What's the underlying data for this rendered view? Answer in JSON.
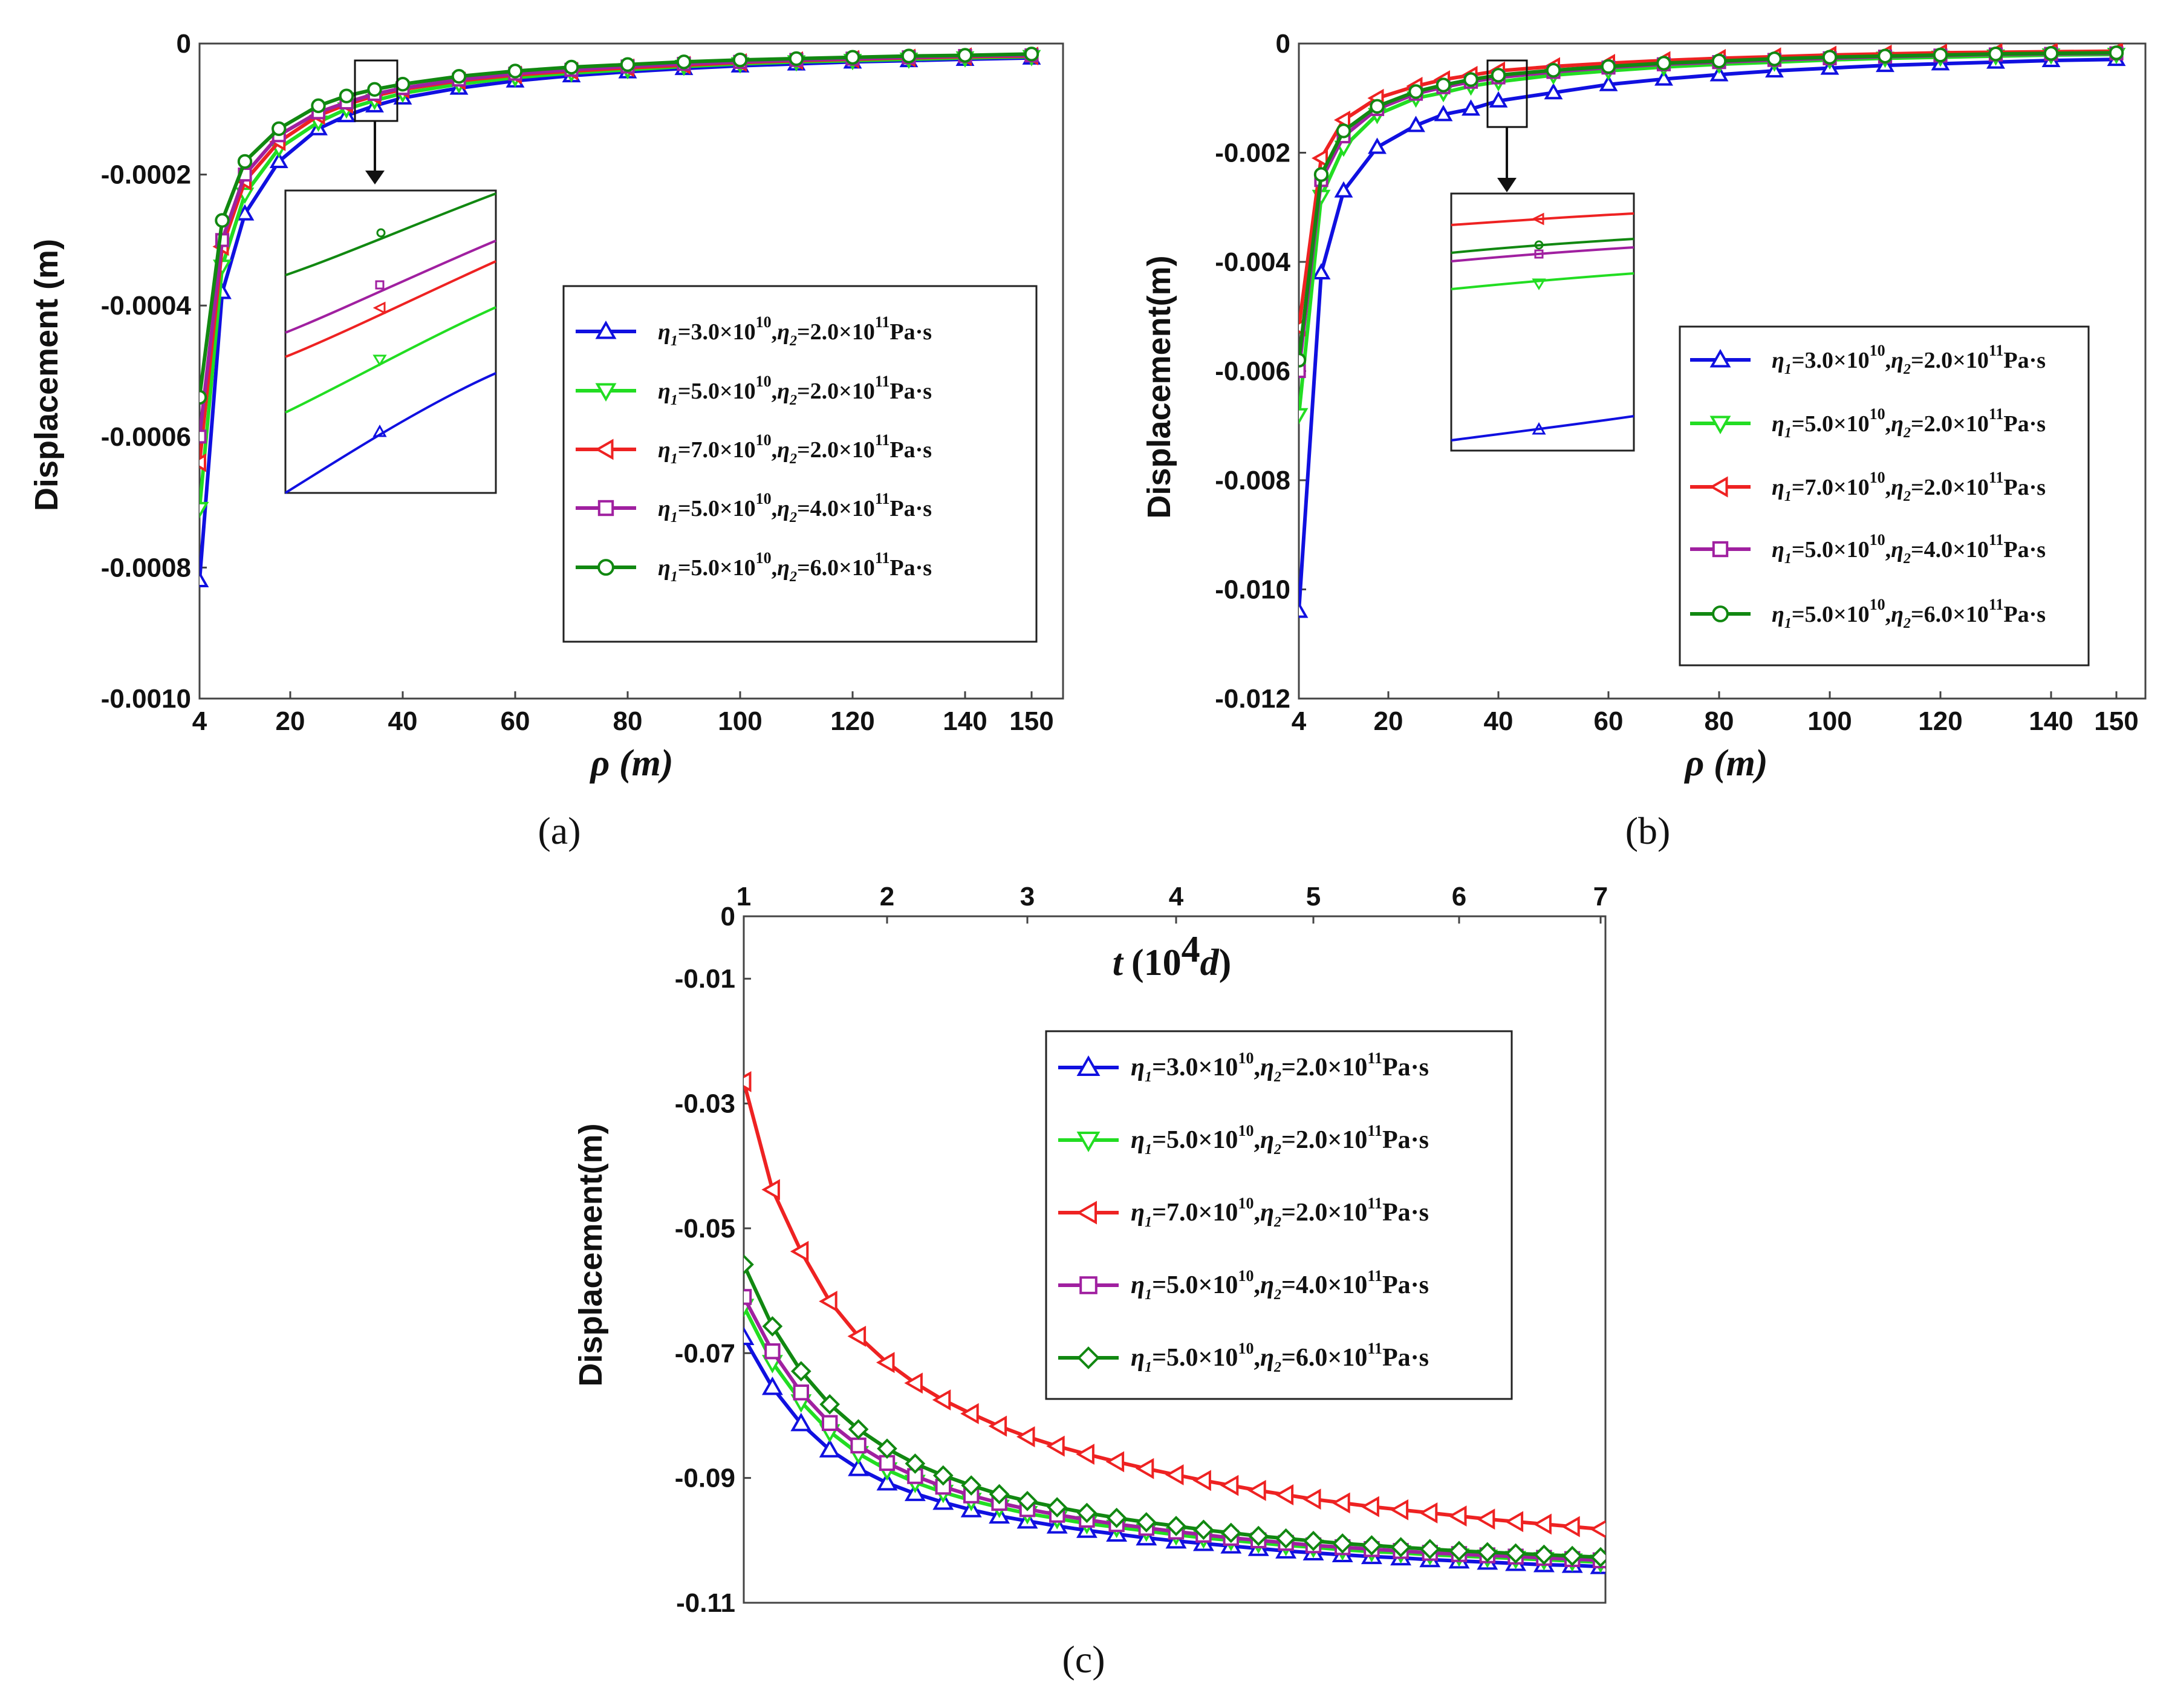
{
  "colors": {
    "blue": "#1010e0",
    "green": "#22dd22",
    "red": "#ee2222",
    "purple": "#a020a0",
    "darkgreen": "#118811"
  },
  "chart_data": [
    {
      "id": "a",
      "type": "line",
      "panel_label": "(a)",
      "xlabel": "ρ (m)",
      "ylabel": "Displacement (m)",
      "x_ticks": [
        "4",
        "20",
        "40",
        "60",
        "80",
        "100",
        "120",
        "140",
        "150"
      ],
      "y_ticks": [
        "0",
        "-0.0002",
        "-0.0004",
        "-0.0006",
        "-0.0008",
        "-0.0010"
      ],
      "xlim": [
        4,
        150
      ],
      "ylim": [
        -0.001,
        0
      ],
      "legend_position": "middle-right",
      "inset": "zoom of region near ρ = 35 m",
      "series": [
        {
          "name": "η1=3.0×10^10, η2=2.0×10^11 Pa·s",
          "legend_eta1": "=3.0×10",
          "legend_eta2": "=2.0×10",
          "marker": "triangle-up",
          "color": "blue",
          "x": [
            4,
            8,
            12,
            18,
            25,
            30,
            35,
            40,
            50,
            60,
            70,
            80,
            90,
            100,
            110,
            120,
            130,
            140,
            150
          ],
          "y": [
            -0.00082,
            -0.00038,
            -0.00026,
            -0.00018,
            -0.00013,
            -0.00011,
            -9.5e-05,
            -8.3e-05,
            -6.8e-05,
            -5.7e-05,
            -4.9e-05,
            -4.3e-05,
            -3.8e-05,
            -3.4e-05,
            -3.1e-05,
            -2.8e-05,
            -2.6e-05,
            -2.4e-05,
            -2.2e-05
          ]
        },
        {
          "name": "η1=5.0×10^10, η2=2.0×10^11 Pa·s",
          "legend_eta1": "=5.0×10",
          "legend_eta2": "=2.0×10",
          "marker": "triangle-down",
          "color": "green",
          "x": [
            4,
            8,
            12,
            18,
            25,
            30,
            35,
            40,
            50,
            60,
            70,
            80,
            90,
            100,
            110,
            120,
            130,
            140,
            150
          ],
          "y": [
            -0.00071,
            -0.00034,
            -0.00023,
            -0.00016,
            -0.00012,
            -0.0001,
            -8.7e-05,
            -7.6e-05,
            -6.2e-05,
            -5.2e-05,
            -4.5e-05,
            -4e-05,
            -3.5e-05,
            -3.1e-05,
            -2.8e-05,
            -2.6e-05,
            -2.4e-05,
            -2.2e-05,
            -2e-05
          ]
        },
        {
          "name": "η1=7.0×10^10, η2=2.0×10^11 Pa·s",
          "legend_eta1": "=7.0×10",
          "legend_eta2": "=2.0×10",
          "marker": "triangle-left",
          "color": "red",
          "x": [
            4,
            8,
            12,
            18,
            25,
            30,
            35,
            40,
            50,
            60,
            70,
            80,
            90,
            100,
            110,
            120,
            130,
            140,
            150
          ],
          "y": [
            -0.00064,
            -0.00031,
            -0.00021,
            -0.00015,
            -0.00011,
            -9.3e-05,
            -8e-05,
            -7e-05,
            -5.7e-05,
            -4.8e-05,
            -4.2e-05,
            -3.7e-05,
            -3.3e-05,
            -2.9e-05,
            -2.6e-05,
            -2.4e-05,
            -2.2e-05,
            -2e-05,
            -1.9e-05
          ]
        },
        {
          "name": "η1=5.0×10^10, η2=4.0×10^11 Pa·s",
          "legend_eta1": "=5.0×10",
          "legend_eta2": "=4.0×10",
          "marker": "square",
          "color": "purple",
          "x": [
            4,
            8,
            12,
            18,
            25,
            30,
            35,
            40,
            50,
            60,
            70,
            80,
            90,
            100,
            110,
            120,
            130,
            140,
            150
          ],
          "y": [
            -0.0006,
            -0.0003,
            -0.0002,
            -0.00014,
            -0.000105,
            -9e-05,
            -7.7e-05,
            -6.8e-05,
            -5.5e-05,
            -4.6e-05,
            -4e-05,
            -3.5e-05,
            -3.1e-05,
            -2.8e-05,
            -2.5e-05,
            -2.3e-05,
            -2.1e-05,
            -1.9e-05,
            -1.8e-05
          ]
        },
        {
          "name": "η1=5.0×10^10, η2=6.0×10^11 Pa·s",
          "legend_eta1": "=5.0×10",
          "legend_eta2": "=6.0×10",
          "marker": "circle",
          "color": "darkgreen",
          "x": [
            4,
            8,
            12,
            18,
            25,
            30,
            35,
            40,
            50,
            60,
            70,
            80,
            90,
            100,
            110,
            120,
            130,
            140,
            150
          ],
          "y": [
            -0.00054,
            -0.00027,
            -0.00018,
            -0.00013,
            -9.5e-05,
            -8e-05,
            -7e-05,
            -6.2e-05,
            -5e-05,
            -4.2e-05,
            -3.6e-05,
            -3.2e-05,
            -2.8e-05,
            -2.5e-05,
            -2.3e-05,
            -2.1e-05,
            -1.9e-05,
            -1.8e-05,
            -1.6e-05
          ]
        }
      ]
    },
    {
      "id": "b",
      "type": "line",
      "panel_label": "(b)",
      "xlabel": "ρ (m)",
      "ylabel": "Displacement(m)",
      "x_ticks": [
        "4",
        "20",
        "40",
        "60",
        "80",
        "100",
        "120",
        "140",
        "150"
      ],
      "y_ticks": [
        "0",
        "-0.002",
        "-0.004",
        "-0.006",
        "-0.008",
        "-0.010",
        "-0.012"
      ],
      "xlim": [
        4,
        150
      ],
      "ylim": [
        -0.012,
        0
      ],
      "legend_position": "lower-right",
      "inset": "zoom of region near ρ = 40 m",
      "series": [
        {
          "name": "η1=3.0×10^10, η2=2.0×10^11 Pa·s",
          "legend_eta1": "=3.0×10",
          "legend_eta2": "=2.0×10",
          "marker": "triangle-up",
          "color": "blue",
          "x": [
            4,
            8,
            12,
            18,
            25,
            30,
            35,
            40,
            50,
            60,
            70,
            80,
            90,
            100,
            110,
            120,
            130,
            140,
            150
          ],
          "y": [
            -0.0104,
            -0.0042,
            -0.0027,
            -0.0019,
            -0.0015,
            -0.0013,
            -0.0012,
            -0.00105,
            -0.0009,
            -0.00075,
            -0.00065,
            -0.00057,
            -0.0005,
            -0.00045,
            -0.0004,
            -0.00037,
            -0.00034,
            -0.00031,
            -0.00029
          ]
        },
        {
          "name": "η1=5.0×10^10, η2=2.0×10^11 Pa·s",
          "legend_eta1": "=5.0×10",
          "legend_eta2": "=2.0×10",
          "marker": "triangle-down",
          "color": "green",
          "x": [
            4,
            8,
            12,
            18,
            25,
            30,
            35,
            40,
            50,
            60,
            70,
            80,
            90,
            100,
            110,
            120,
            130,
            140,
            150
          ],
          "y": [
            -0.0068,
            -0.0028,
            -0.0019,
            -0.0013,
            -0.001,
            -0.0009,
            -0.00078,
            -0.0007,
            -0.00058,
            -0.0005,
            -0.00043,
            -0.00038,
            -0.00034,
            -0.0003,
            -0.00027,
            -0.00025,
            -0.00023,
            -0.00021,
            -0.0002
          ]
        },
        {
          "name": "η1=7.0×10^10, η2=2.0×10^11 Pa·s",
          "legend_eta1": "=7.0×10",
          "legend_eta2": "=2.0×10",
          "marker": "triangle-left",
          "color": "red",
          "x": [
            4,
            8,
            12,
            18,
            25,
            30,
            35,
            40,
            50,
            60,
            70,
            80,
            90,
            100,
            110,
            120,
            130,
            140,
            150
          ],
          "y": [
            -0.0052,
            -0.0021,
            -0.0014,
            -0.001,
            -0.00078,
            -0.00066,
            -0.00058,
            -0.0005,
            -0.00042,
            -0.00036,
            -0.00031,
            -0.00027,
            -0.00024,
            -0.00021,
            -0.00019,
            -0.00017,
            -0.00016,
            -0.00015,
            -0.00014
          ]
        },
        {
          "name": "η1=5.0×10^10, η2=4.0×10^11 Pa·s",
          "legend_eta1": "=5.0×10",
          "legend_eta2": "=4.0×10",
          "marker": "square",
          "color": "purple",
          "x": [
            4,
            8,
            12,
            18,
            25,
            30,
            35,
            40,
            50,
            60,
            70,
            80,
            90,
            100,
            110,
            120,
            130,
            140,
            150
          ],
          "y": [
            -0.006,
            -0.0025,
            -0.0017,
            -0.0012,
            -0.00092,
            -0.0008,
            -0.0007,
            -0.00062,
            -0.00052,
            -0.00044,
            -0.00038,
            -0.00034,
            -0.0003,
            -0.00027,
            -0.00024,
            -0.00022,
            -0.0002,
            -0.00019,
            -0.00018
          ]
        },
        {
          "name": "η1=5.0×10^10, η2=6.0×10^11 Pa·s",
          "legend_eta1": "=5.0×10",
          "legend_eta2": "=6.0×10",
          "marker": "circle",
          "color": "darkgreen",
          "x": [
            4,
            8,
            12,
            18,
            25,
            30,
            35,
            40,
            50,
            60,
            70,
            80,
            90,
            100,
            110,
            120,
            130,
            140,
            150
          ],
          "y": [
            -0.0058,
            -0.0024,
            -0.0016,
            -0.00115,
            -0.00088,
            -0.00076,
            -0.00066,
            -0.00058,
            -0.00049,
            -0.00042,
            -0.00036,
            -0.00032,
            -0.00028,
            -0.00025,
            -0.00023,
            -0.00021,
            -0.00019,
            -0.00018,
            -0.00017
          ]
        }
      ]
    },
    {
      "id": "c",
      "type": "line",
      "panel_label": "(c)",
      "xlabel_main": "t",
      "xlabel_unit_open": "(10",
      "xlabel_exp": "4",
      "xlabel_unit_var": "d",
      "xlabel_unit_close": ")",
      "ylabel": "Displacement(m)",
      "x_ticks": [
        "1",
        "2",
        "3",
        "4",
        "5",
        "6",
        "7"
      ],
      "y_ticks": [
        "0",
        "-0.01",
        "-0.03",
        "-0.05",
        "-0.07",
        "-0.09",
        "-0.11"
      ],
      "xlim": [
        1,
        7
      ],
      "ylim": [
        -0.11,
        0
      ],
      "x_axis_position": "top",
      "legend_position": "upper-right",
      "series": [
        {
          "name": "η1=3.0×10^10, η2=2.0×10^11 Pa·s",
          "legend_eta1": "=3.0×10",
          "legend_eta2": "=2.0×10",
          "marker": "triangle-up",
          "color": "blue",
          "x": [
            1,
            1.2,
            1.4,
            1.6,
            1.8,
            2,
            2.2,
            2.4,
            2.6,
            2.8,
            3,
            3.2,
            3.4,
            3.6,
            3.8,
            4,
            4.2,
            4.4,
            4.6,
            4.8,
            5,
            5.2,
            5.4,
            5.6,
            5.8,
            6,
            6.2,
            6.4,
            6.6,
            6.8,
            7
          ],
          "y": [
            -0.0675,
            -0.0755,
            -0.0813,
            -0.0855,
            -0.0885,
            -0.0908,
            -0.0925,
            -0.0939,
            -0.0951,
            -0.0961,
            -0.0969,
            -0.0977,
            -0.0984,
            -0.099,
            -0.0996,
            -0.1001,
            -0.1005,
            -0.1009,
            -0.1013,
            -0.1017,
            -0.102,
            -0.1023,
            -0.1026,
            -0.1028,
            -0.1031,
            -0.1033,
            -0.1035,
            -0.1037,
            -0.1039,
            -0.104,
            -0.1042
          ]
        },
        {
          "name": "η1=5.0×10^10, η2=2.0×10^11 Pa·s",
          "legend_eta1": "=5.0×10",
          "legend_eta2": "=2.0×10",
          "marker": "triangle-down",
          "color": "green",
          "x": [
            1,
            1.2,
            1.4,
            1.6,
            1.8,
            2,
            2.2,
            2.4,
            2.6,
            2.8,
            3,
            3.2,
            3.4,
            3.6,
            3.8,
            4,
            4.2,
            4.4,
            4.6,
            4.8,
            5,
            5.2,
            5.4,
            5.6,
            5.8,
            6,
            6.2,
            6.4,
            6.6,
            6.8,
            7
          ],
          "y": [
            -0.0625,
            -0.0715,
            -0.0778,
            -0.0826,
            -0.0861,
            -0.0887,
            -0.0907,
            -0.0923,
            -0.0936,
            -0.0947,
            -0.0957,
            -0.0965,
            -0.0973,
            -0.0979,
            -0.0985,
            -0.0991,
            -0.0996,
            -0.1,
            -0.1004,
            -0.1008,
            -0.1011,
            -0.1015,
            -0.1018,
            -0.102,
            -0.1023,
            -0.1025,
            -0.1027,
            -0.1029,
            -0.1031,
            -0.1033,
            -0.1035
          ]
        },
        {
          "name": "η1=7.0×10^10, η2=2.0×10^11 Pa·s",
          "legend_eta1": "=7.0×10",
          "legend_eta2": "=2.0×10",
          "marker": "triangle-left",
          "color": "red",
          "x": [
            1,
            1.2,
            1.4,
            1.6,
            1.8,
            2,
            2.2,
            2.4,
            2.6,
            2.8,
            3,
            3.2,
            3.4,
            3.6,
            3.8,
            4,
            4.2,
            4.4,
            4.6,
            4.8,
            5,
            5.2,
            5.4,
            5.6,
            5.8,
            6,
            6.2,
            6.4,
            6.6,
            6.8,
            7
          ],
          "y": [
            -0.0265,
            -0.0438,
            -0.0537,
            -0.0617,
            -0.0673,
            -0.0715,
            -0.0748,
            -0.0775,
            -0.0797,
            -0.0817,
            -0.0834,
            -0.0849,
            -0.0862,
            -0.0874,
            -0.0885,
            -0.0895,
            -0.0904,
            -0.0912,
            -0.092,
            -0.0927,
            -0.0934,
            -0.094,
            -0.0946,
            -0.0951,
            -0.0956,
            -0.0961,
            -0.0966,
            -0.097,
            -0.0974,
            -0.0978,
            -0.0982
          ]
        },
        {
          "name": "η1=5.0×10^10, η2=4.0×10^11 Pa·s",
          "legend_eta1": "=5.0×10",
          "legend_eta2": "=4.0×10",
          "marker": "square",
          "color": "purple",
          "x": [
            1,
            1.2,
            1.4,
            1.6,
            1.8,
            2,
            2.2,
            2.4,
            2.6,
            2.8,
            3,
            3.2,
            3.4,
            3.6,
            3.8,
            4,
            4.2,
            4.4,
            4.6,
            4.8,
            5,
            5.2,
            5.4,
            5.6,
            5.8,
            6,
            6.2,
            6.4,
            6.6,
            6.8,
            7
          ],
          "y": [
            -0.061,
            -0.0697,
            -0.0763,
            -0.0812,
            -0.0848,
            -0.0876,
            -0.0897,
            -0.0914,
            -0.0928,
            -0.094,
            -0.095,
            -0.0959,
            -0.0967,
            -0.0974,
            -0.098,
            -0.0986,
            -0.0991,
            -0.0996,
            -0.1,
            -0.1004,
            -0.1008,
            -0.1011,
            -0.1014,
            -0.1017,
            -0.102,
            -0.1022,
            -0.1024,
            -0.1026,
            -0.1028,
            -0.103,
            -0.1032
          ]
        },
        {
          "name": "η1=5.0×10^10, η2=6.0×10^11 Pa·s",
          "legend_eta1": "=5.0×10",
          "legend_eta2": "=6.0×10",
          "marker": "diamond",
          "color": "darkgreen",
          "x": [
            1,
            1.2,
            1.4,
            1.6,
            1.8,
            2,
            2.2,
            2.4,
            2.6,
            2.8,
            3,
            3.2,
            3.4,
            3.6,
            3.8,
            4,
            4.2,
            4.4,
            4.6,
            4.8,
            5,
            5.2,
            5.4,
            5.6,
            5.8,
            6,
            6.2,
            6.4,
            6.6,
            6.8,
            7
          ],
          "y": [
            -0.0558,
            -0.0657,
            -0.0729,
            -0.0782,
            -0.0822,
            -0.0853,
            -0.0877,
            -0.0896,
            -0.0912,
            -0.0926,
            -0.0937,
            -0.0947,
            -0.0956,
            -0.0964,
            -0.0971,
            -0.0977,
            -0.0983,
            -0.0988,
            -0.0993,
            -0.0997,
            -0.1001,
            -0.1005,
            -0.1008,
            -0.1011,
            -0.1014,
            -0.1017,
            -0.1019,
            -0.1021,
            -0.1023,
            -0.1025,
            -0.1027
          ]
        }
      ]
    }
  ]
}
